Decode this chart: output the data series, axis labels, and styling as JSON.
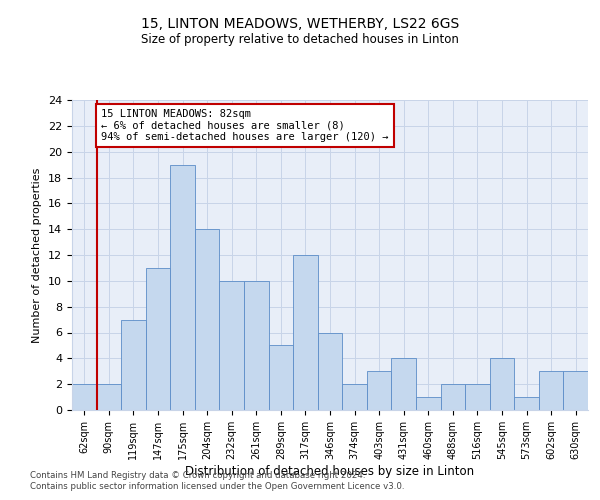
{
  "title": "15, LINTON MEADOWS, WETHERBY, LS22 6GS",
  "subtitle": "Size of property relative to detached houses in Linton",
  "xlabel": "Distribution of detached houses by size in Linton",
  "ylabel": "Number of detached properties",
  "categories": [
    "62sqm",
    "90sqm",
    "119sqm",
    "147sqm",
    "175sqm",
    "204sqm",
    "232sqm",
    "261sqm",
    "289sqm",
    "317sqm",
    "346sqm",
    "374sqm",
    "403sqm",
    "431sqm",
    "460sqm",
    "488sqm",
    "516sqm",
    "545sqm",
    "573sqm",
    "602sqm",
    "630sqm"
  ],
  "values": [
    2,
    2,
    7,
    11,
    19,
    14,
    10,
    10,
    5,
    12,
    6,
    2,
    3,
    4,
    1,
    2,
    2,
    4,
    1,
    3,
    3
  ],
  "bar_color": "#c5d8ee",
  "bar_edge_color": "#5b8cc8",
  "annotation_line_color": "#c00000",
  "annotation_box_color": "#c00000",
  "annotation_line1": "15 LINTON MEADOWS: 82sqm",
  "annotation_line2": "← 6% of detached houses are smaller (8)",
  "annotation_line3": "94% of semi-detached houses are larger (120) →",
  "ylim": [
    0,
    24
  ],
  "yticks": [
    0,
    2,
    4,
    6,
    8,
    10,
    12,
    14,
    16,
    18,
    20,
    22,
    24
  ],
  "grid_color": "#c8d4e8",
  "background_color": "#e8eef8",
  "footer1": "Contains HM Land Registry data © Crown copyright and database right 2024.",
  "footer2": "Contains public sector information licensed under the Open Government Licence v3.0."
}
